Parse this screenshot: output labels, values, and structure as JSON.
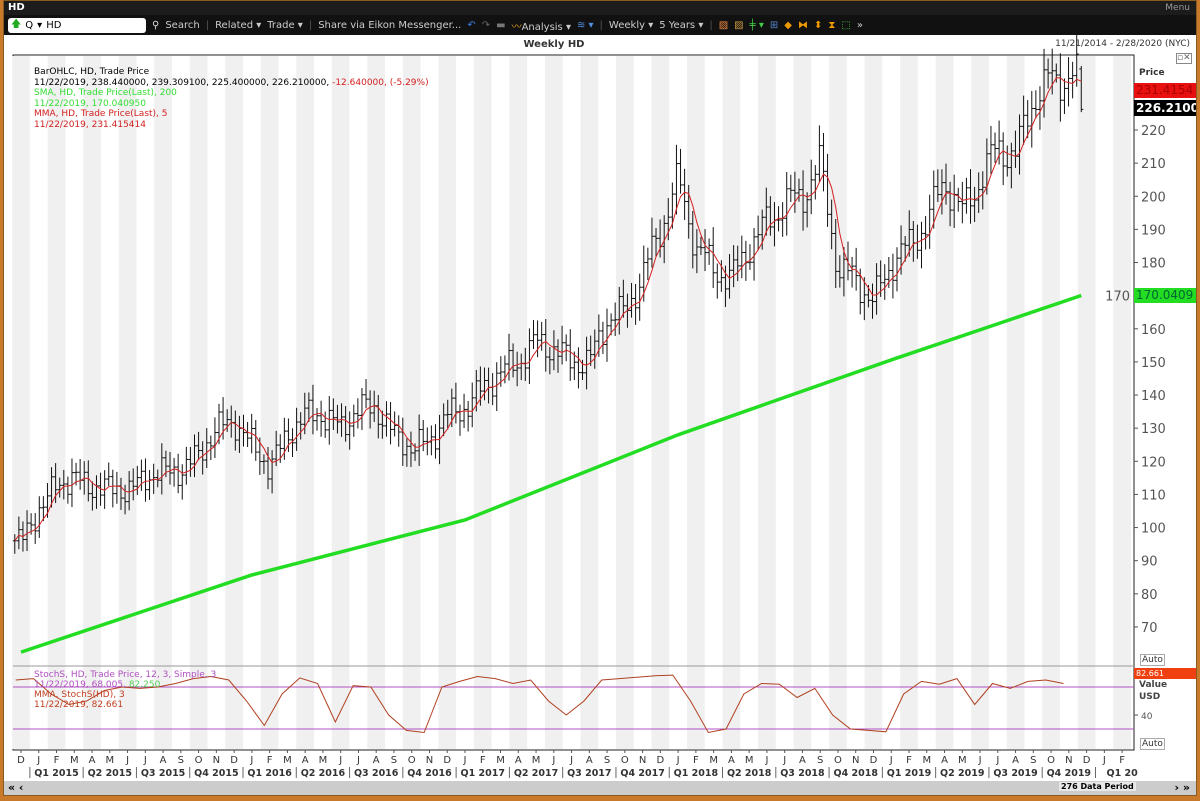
{
  "window": {
    "title": "HD",
    "menu": "Menu"
  },
  "toolbar": {
    "ric_prefix": "Q",
    "ric_value": "HD",
    "search": "Search",
    "related": "Related ▾",
    "trade": "Trade ▾",
    "share": "Share via Eikon Messenger...",
    "analysis": "Analysis ▾",
    "interval": "Weekly ▾",
    "period": "5 Years ▾"
  },
  "chart": {
    "title": "Weekly HD",
    "range": "11/21/2014 - 2/28/2020 (NYC)"
  },
  "legend": {
    "bar_name": "BarOHLC, HD, Trade Price",
    "bar_values": "11/22/2019, 238.440000, 239.309100, 225.400000, 226.210000,",
    "bar_change": "-12.640000, (-5.29%)",
    "sma_name": "SMA, HD, Trade Price(Last),  200",
    "sma_values": "11/22/2019, 170.040950",
    "mma_name": "MMA, HD, Trade Price(Last),  5",
    "mma_values": "11/22/2019, 231.415414",
    "stoch_name": "StochS, HD, Trade Price,  12, 3, Simple, 3",
    "stoch_values": "11/22/2019, 68.005,",
    "stoch_values2": "82.250",
    "stoch_mma_name": "MMA, StochS(HD),  3",
    "stoch_mma_values": "11/22/2019, 82.661"
  },
  "axis": {
    "price_label": "Price",
    "mma_badge": "231.4154",
    "last_badge": "226.2100",
    "sma_badge": "170.0409",
    "auto": "Auto",
    "stoch_badge": "82.661",
    "value_label": "Value",
    "usd_label": "USD"
  },
  "colors": {
    "sma": "#22dd22",
    "mma": "#d42020",
    "stoch": "#b04020",
    "bands": "#b050c0",
    "badge_red": "#e81010",
    "badge_green": "#22dd22"
  },
  "scroll": {
    "data_period": "276 Data Period"
  },
  "chart_data": {
    "type": "ohlc",
    "price_ticks": [
      70,
      80,
      90,
      100,
      110,
      120,
      130,
      140,
      150,
      160,
      170,
      180,
      190,
      200,
      210,
      220
    ],
    "ylim": [
      62,
      240
    ],
    "months": [
      "D",
      "J",
      "F",
      "M",
      "A",
      "M",
      "J",
      "J",
      "A",
      "S",
      "O",
      "N",
      "D",
      "J",
      "F",
      "M",
      "A",
      "M",
      "J",
      "J",
      "A",
      "S",
      "O",
      "N",
      "D",
      "J",
      "F",
      "M",
      "A",
      "M",
      "J",
      "J",
      "A",
      "S",
      "O",
      "N",
      "D",
      "J",
      "F",
      "M",
      "A",
      "M",
      "J",
      "J",
      "A",
      "S",
      "O",
      "N",
      "D",
      "J",
      "F",
      "M",
      "A",
      "M",
      "J",
      "J",
      "A",
      "S",
      "O",
      "N",
      "D",
      "J",
      "F"
    ],
    "quarters": [
      "Q1 2015",
      "Q2 2015",
      "Q3 2015",
      "Q4 2015",
      "Q1 2016",
      "Q2 2016",
      "Q3 2016",
      "Q4 2016",
      "Q1 2017",
      "Q2 2017",
      "Q3 2017",
      "Q4 2017",
      "Q1 2018",
      "Q2 2018",
      "Q3 2018",
      "Q4 2018",
      "Q1 2019",
      "Q2 2019",
      "Q3 2019",
      "Q4 2019",
      "Q1 20"
    ],
    "price_monthly_close": [
      96,
      105,
      113,
      115,
      112,
      112,
      111,
      115,
      117,
      117,
      122,
      130,
      132,
      125,
      118,
      128,
      134,
      134,
      130,
      136,
      136,
      128,
      124,
      126,
      134,
      136,
      142,
      147,
      150,
      156,
      154,
      150,
      150,
      163,
      165,
      176,
      190,
      205,
      185,
      178,
      175,
      185,
      192,
      198,
      200,
      210,
      178,
      175,
      168,
      180,
      185,
      192,
      205,
      195,
      205,
      215,
      212,
      230,
      235,
      236
    ],
    "last_bar": {
      "date": "11/22/2019",
      "open": 238.44,
      "high": 239.3091,
      "low": 225.4,
      "close": 226.21
    },
    "sma200": [
      [
        0,
        62.4
      ],
      [
        13,
        85.7
      ],
      [
        25,
        102.3
      ],
      [
        37,
        128
      ],
      [
        49,
        150.6
      ],
      [
        59.7,
        170.04
      ]
    ],
    "stoch_ticks": [
      40
    ],
    "stoch_bands": [
      80,
      20
    ],
    "stoch_monthly": [
      90,
      92,
      70,
      55,
      60,
      75,
      80,
      78,
      80,
      85,
      92,
      95,
      90,
      60,
      25,
      70,
      93,
      85,
      30,
      82,
      80,
      40,
      18,
      15,
      80,
      88,
      95,
      92,
      85,
      90,
      60,
      40,
      60,
      90,
      92,
      94,
      96,
      97,
      60,
      15,
      20,
      70,
      85,
      84,
      65,
      78,
      40,
      20,
      18,
      16,
      70,
      88,
      84,
      92,
      55,
      85,
      78,
      88,
      90,
      85
    ]
  }
}
